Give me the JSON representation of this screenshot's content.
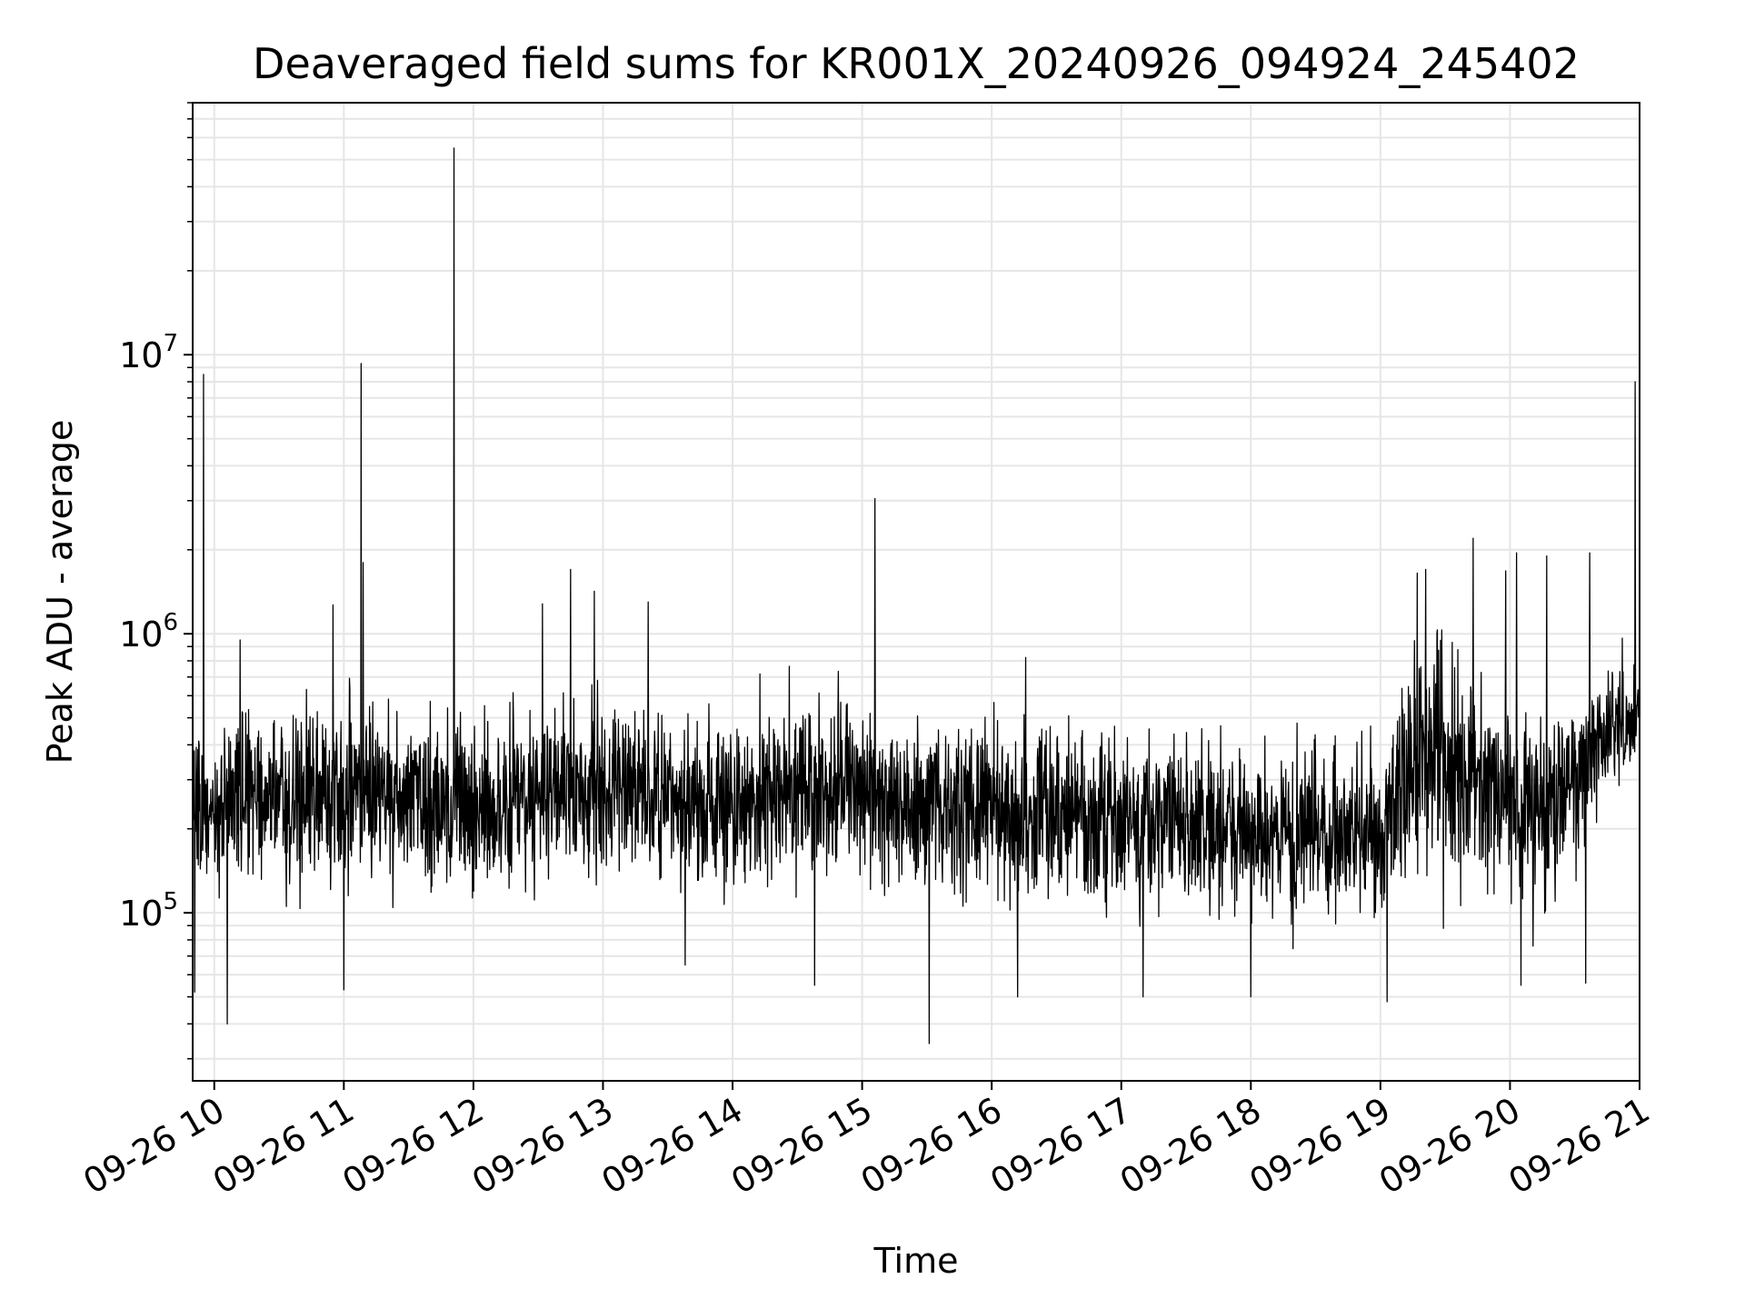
{
  "chart_data": {
    "type": "line",
    "title": "Deaveraged field sums for KR001X_20240926_094924_245402",
    "xlabel": "Time",
    "ylabel": "Peak ADU - average",
    "y_scale": "log",
    "ylim": [
      25000,
      80000000
    ],
    "xlim": [
      "09-26 09:50",
      "09-26 21:00"
    ],
    "grid": true,
    "x_ticks": [
      "09-26 10",
      "09-26 11",
      "09-26 12",
      "09-26 13",
      "09-26 14",
      "09-26 15",
      "09-26 16",
      "09-26 17",
      "09-26 18",
      "09-26 19",
      "09-26 20",
      "09-26 21"
    ],
    "y_ticks": [
      {
        "base": "10",
        "exp": "5",
        "value": 100000
      },
      {
        "base": "10",
        "exp": "6",
        "value": 1000000
      },
      {
        "base": "10",
        "exp": "7",
        "value": 10000000
      }
    ],
    "series": [
      {
        "color": "#000000",
        "description": "noisy signal around a typical level, listed as [time, typical_value, spread_factor]",
        "baseline": [
          [
            "09:50",
            250000,
            1.6
          ],
          [
            "10:10",
            250000,
            1.6
          ],
          [
            "10:40",
            260000,
            1.6
          ],
          [
            "11:20",
            260000,
            1.6
          ],
          [
            "12:00",
            240000,
            1.6
          ],
          [
            "12:40",
            280000,
            1.6
          ],
          [
            "13:20",
            260000,
            1.6
          ],
          [
            "14:00",
            250000,
            1.6
          ],
          [
            "14:30",
            290000,
            1.6
          ],
          [
            "15:00",
            270000,
            1.6
          ],
          [
            "15:30",
            230000,
            1.6
          ],
          [
            "16:00",
            240000,
            1.6
          ],
          [
            "16:30",
            220000,
            1.6
          ],
          [
            "17:00",
            220000,
            1.6
          ],
          [
            "17:30",
            210000,
            1.6
          ],
          [
            "18:00",
            200000,
            1.6
          ],
          [
            "18:30",
            190000,
            1.6
          ],
          [
            "19:00",
            190000,
            1.6
          ],
          [
            "19:20",
            380000,
            1.9
          ],
          [
            "19:40",
            300000,
            1.9
          ],
          [
            "20:00",
            250000,
            1.7
          ],
          [
            "20:20",
            240000,
            1.7
          ],
          [
            "20:40",
            380000,
            1.5
          ],
          [
            "21:00",
            520000,
            1.3
          ]
        ],
        "spikes": [
          [
            "09:55",
            8500000
          ],
          [
            "10:12",
            950000
          ],
          [
            "10:55",
            1270000
          ],
          [
            "11:08",
            9300000
          ],
          [
            "11:09",
            1800000
          ],
          [
            "11:51",
            55000000
          ],
          [
            "12:32",
            1280000
          ],
          [
            "12:45",
            1700000
          ],
          [
            "12:56",
            1420000
          ],
          [
            "13:21",
            1300000
          ],
          [
            "15:06",
            3050000
          ],
          [
            "19:17",
            1650000
          ],
          [
            "19:21",
            1700000
          ],
          [
            "19:43",
            2200000
          ],
          [
            "19:58",
            1680000
          ],
          [
            "20:03",
            1950000
          ],
          [
            "20:17",
            1900000
          ],
          [
            "20:37",
            1950000
          ],
          [
            "20:58",
            8000000
          ]
        ],
        "dips": [
          [
            "09:51",
            52000
          ],
          [
            "10:06",
            40000
          ],
          [
            "11:00",
            53000
          ],
          [
            "13:38",
            65000
          ],
          [
            "14:38",
            55000
          ],
          [
            "15:31",
            34000
          ],
          [
            "16:12",
            50000
          ],
          [
            "17:10",
            50000
          ],
          [
            "18:00",
            50000
          ],
          [
            "19:03",
            48000
          ],
          [
            "20:05",
            55000
          ],
          [
            "20:35",
            56000
          ]
        ]
      }
    ]
  }
}
